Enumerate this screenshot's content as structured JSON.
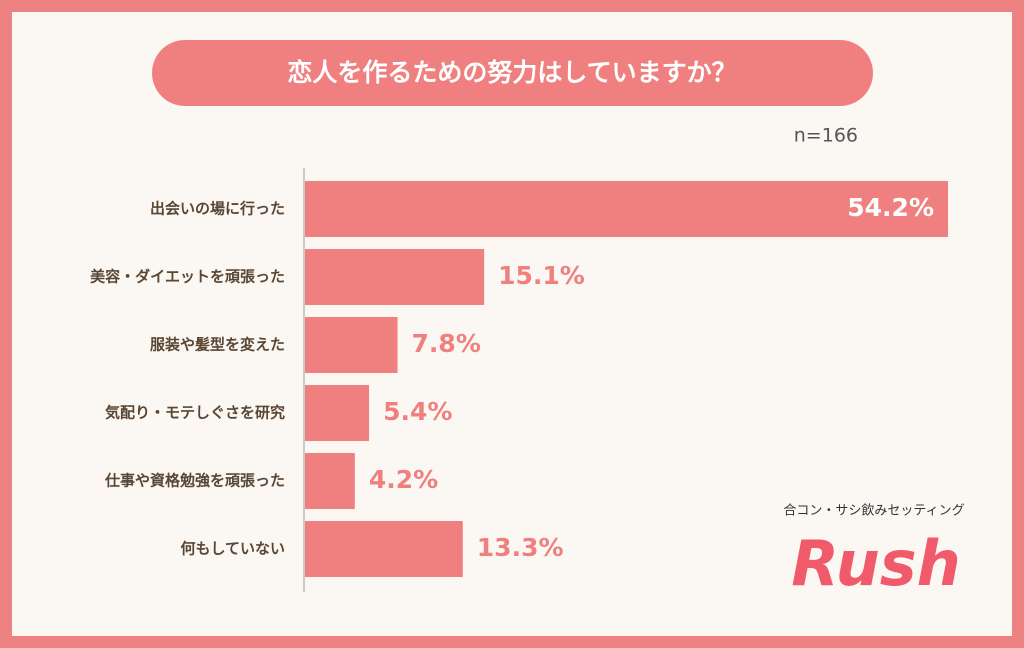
{
  "chart_data": {
    "type": "hbar",
    "title": "恋人を作るための努力はしていますか？",
    "subtitle": "n=166",
    "categories": [
      "出会いの場に行った",
      "美容・ダイエットを頑張った",
      "服装や髪型を変えた",
      "気配り・モテしぐさを研究",
      "仕事や資格勉強を頑張った",
      "何もしていない"
    ],
    "values": [
      54.2,
      15.1,
      7.8,
      5.4,
      4.2,
      13.3
    ],
    "value_labels": [
      "54.2%",
      "15.1%",
      "7.8%",
      "5.4%",
      "4.2%",
      "13.3%"
    ],
    "color": "#f08080"
  },
  "brand": {
    "tagline": "合コン・サシ飲みセッティング",
    "name": "Rush"
  }
}
